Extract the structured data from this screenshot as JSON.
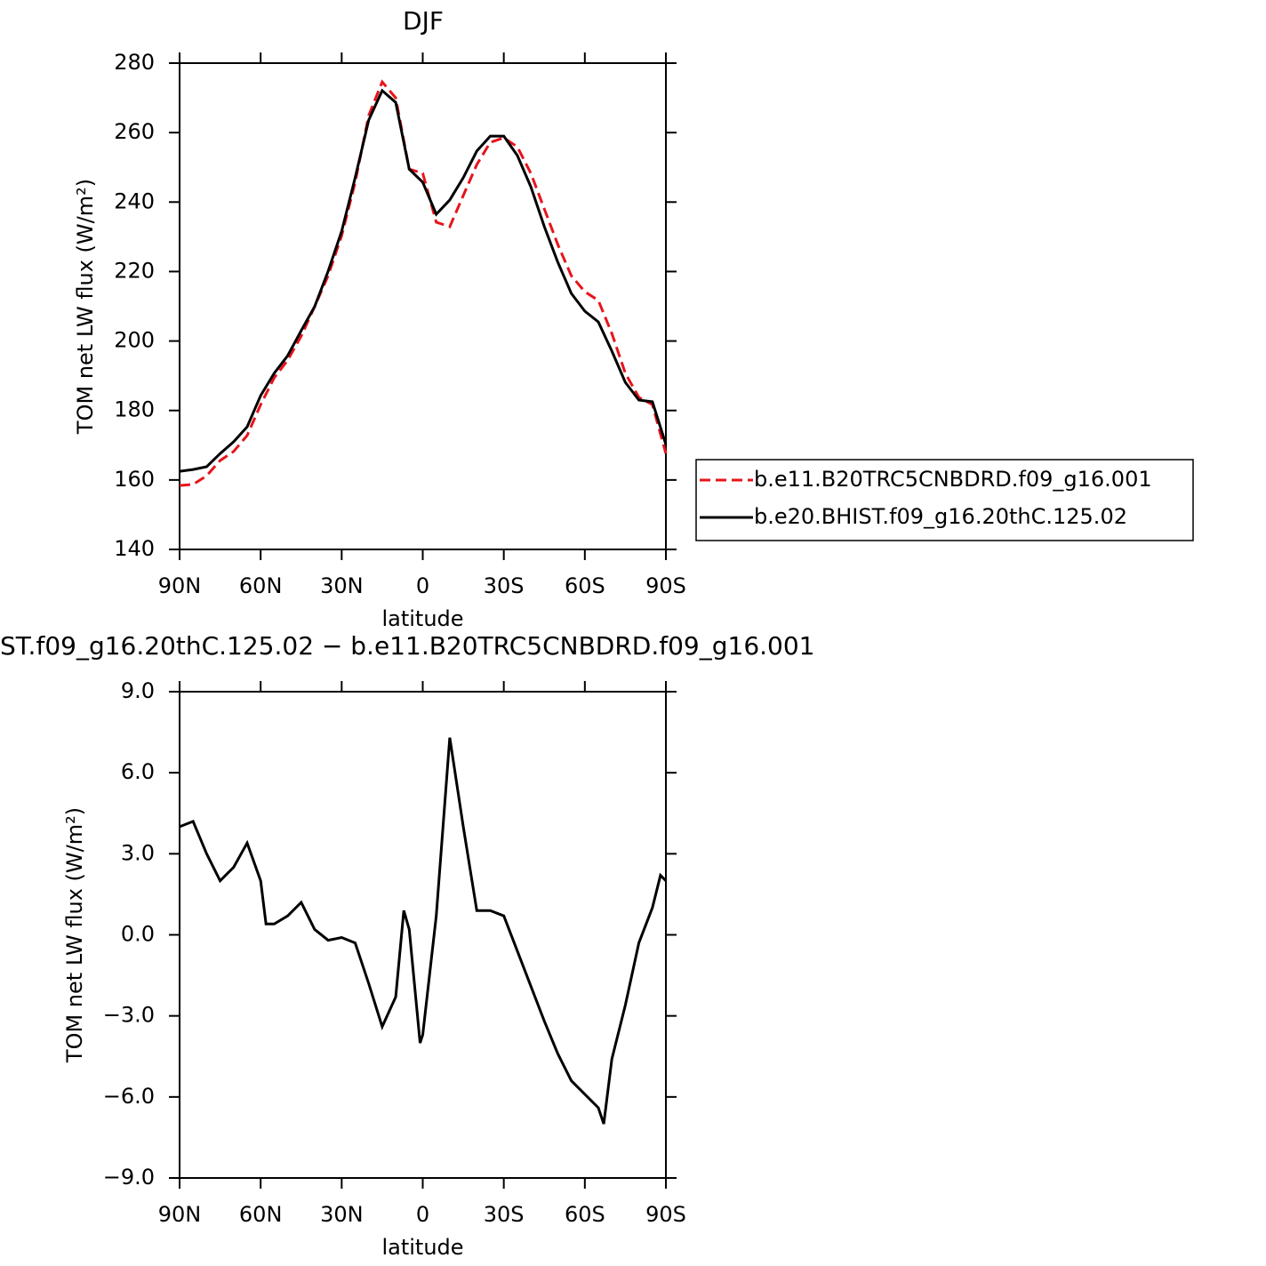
{
  "chart_data": [
    {
      "type": "line",
      "title": "DJF",
      "xlabel": "latitude",
      "ylabel": "TOM net LW flux (W/m²)",
      "x": [
        90,
        85,
        80,
        75,
        70,
        65,
        60,
        55,
        50,
        45,
        40,
        35,
        30,
        25,
        20,
        15,
        10,
        5,
        0,
        -5,
        -10,
        -15,
        -20,
        -25,
        -30,
        -35,
        -40,
        -45,
        -50,
        -55,
        -60,
        -65,
        -70,
        -75,
        -80,
        -85,
        -90
      ],
      "series": [
        {
          "name": "b.e11.B20TRC5CNBDRD.f09_g16.001",
          "color": "#e8141c",
          "dash": "dashed",
          "values": [
            158.4,
            158.7,
            161.2,
            165.6,
            168.2,
            172.8,
            181.7,
            189.4,
            194.5,
            201.4,
            209.9,
            218.8,
            230.3,
            245.7,
            264.9,
            274.6,
            270,
            249.5,
            248.3,
            234.2,
            232.9,
            241.9,
            250.8,
            257.2,
            258.5,
            255.9,
            248.3,
            238,
            227.8,
            218.8,
            214.2,
            211.7,
            202.2,
            190.7,
            183.8,
            181.7,
            167.6
          ]
        },
        {
          "name": "b.e20.BHIST.f09_g16.20thC.125.02",
          "color": "#000000",
          "dash": "solid",
          "values": [
            162.5,
            163,
            163.8,
            167.6,
            171,
            175.3,
            184.3,
            190.7,
            195.8,
            203,
            209.9,
            220.1,
            231.6,
            247,
            263.6,
            272.1,
            268.7,
            249.5,
            245.7,
            236.5,
            240.6,
            247,
            254.7,
            259,
            259,
            253.4,
            244.4,
            232.9,
            222.7,
            213.7,
            208.6,
            205.5,
            197.1,
            188.1,
            183,
            182.5,
            170.2
          ]
        }
      ],
      "xlim": [
        90,
        -90
      ],
      "xticks": [
        {
          "value": 90,
          "label": "90N"
        },
        {
          "value": 60,
          "label": "60N"
        },
        {
          "value": 30,
          "label": "30N"
        },
        0,
        {
          "value": -30,
          "label": "30S"
        },
        {
          "value": -60,
          "label": "60S"
        },
        {
          "value": -90,
          "label": "90S"
        }
      ],
      "ylim": [
        140,
        280
      ],
      "yticks": [
        140,
        160,
        180,
        200,
        220,
        240,
        260,
        280
      ],
      "legend": "right"
    },
    {
      "type": "line",
      "title": "ST.f09_g16.20thC.125.02 − b.e11.B20TRC5CNBDRD.f09_g16.001",
      "xlabel": "latitude",
      "ylabel": "TOM net LW flux (W/m²)",
      "x": [
        90,
        85,
        80,
        75,
        70,
        65,
        60,
        58,
        55,
        50,
        45,
        40,
        35,
        30,
        25,
        20,
        15,
        10,
        7,
        5,
        1,
        0,
        -5,
        -10,
        -15,
        -20,
        -25,
        -30,
        -35,
        -40,
        -45,
        -50,
        -55,
        -60,
        -65,
        -67,
        -70,
        -75,
        -80,
        -85,
        -88,
        -90
      ],
      "series": [
        {
          "color": "#000000",
          "dash": "solid",
          "values": [
            4.0,
            4.2,
            3.0,
            2.0,
            2.5,
            3.4,
            2.0,
            0.4,
            0.4,
            0.7,
            1.2,
            0.2,
            -0.2,
            -0.1,
            -0.3,
            -1.8,
            -3.4,
            -2.3,
            0.9,
            0.2,
            -4.0,
            -3.7,
            0.7,
            7.3,
            4.0,
            0.9,
            0.9,
            0.7,
            -0.6,
            -1.9,
            -3.2,
            -4.4,
            -5.4,
            -5.9,
            -6.4,
            -7.0,
            -4.6,
            -2.6,
            -0.3,
            1.0,
            2.2,
            2.0
          ]
        }
      ],
      "xlim": [
        90,
        -90
      ],
      "xticks": [
        {
          "value": 90,
          "label": "90N"
        },
        {
          "value": 60,
          "label": "60N"
        },
        {
          "value": 30,
          "label": "30N"
        },
        0,
        {
          "value": -30,
          "label": "30S"
        },
        {
          "value": -60,
          "label": "60S"
        },
        {
          "value": -90,
          "label": "90S"
        }
      ],
      "ylim": [
        -9,
        9
      ],
      "yticks": [
        {
          "value": -9,
          "label": "−9.0"
        },
        {
          "value": -6,
          "label": "−6.0"
        },
        {
          "value": -3,
          "label": "−3.0"
        },
        {
          "value": 0,
          "label": "0.0"
        },
        {
          "value": 3,
          "label": "3.0"
        },
        {
          "value": 6,
          "label": "6.0"
        },
        {
          "value": 9,
          "label": "9.0"
        }
      ]
    }
  ]
}
